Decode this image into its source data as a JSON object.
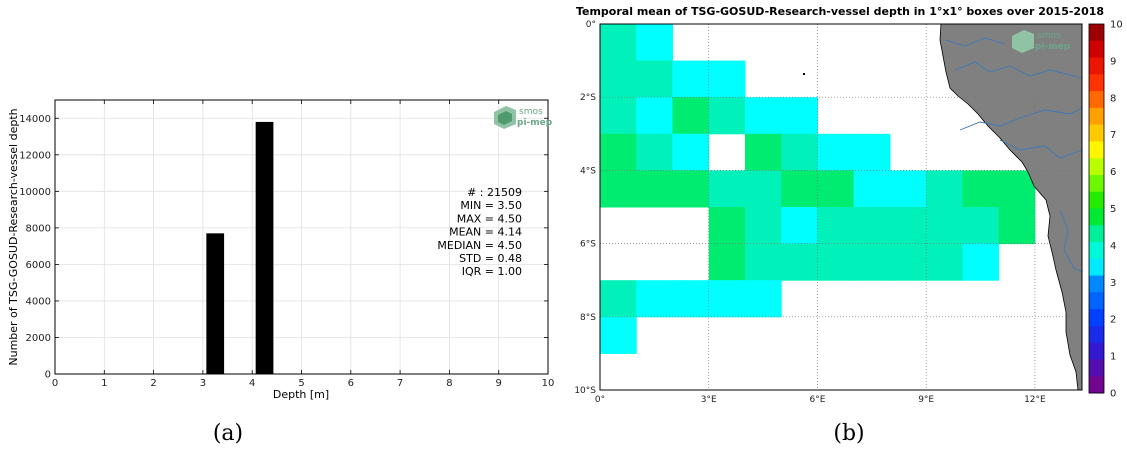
{
  "chart_data": [
    {
      "type": "bar",
      "xlabel": "Depth [m]",
      "ylabel": "Number of TSG-GOSUD-Research-vessel depth",
      "xlim": [
        0,
        10
      ],
      "ylim": [
        0,
        15000
      ],
      "x_ticks": [
        "0",
        "1",
        "2",
        "3",
        "4",
        "5",
        "6",
        "7",
        "8",
        "9",
        "10"
      ],
      "y_ticks": [
        "0",
        "2000",
        "4000",
        "6000",
        "8000",
        "10000",
        "12000",
        "14000"
      ],
      "bars": [
        {
          "x": 3.5,
          "value": 7700
        },
        {
          "x": 4.5,
          "value": 13800
        }
      ],
      "bar_color": "#000000",
      "grid": true,
      "stats": [
        "# : 21509",
        "MIN = 3.50",
        "MAX =  4.50",
        "MEAN = 4.14",
        "MEDIAN = 4.50",
        "STD = 0.48",
        "IQR = 1.00"
      ],
      "logo": [
        "smos",
        "pi-mep"
      ],
      "caption": "(a)"
    },
    {
      "type": "heatmap",
      "title": "Temporal mean of TSG-GOSUD-Research-vessel depth in 1°x1° boxes over 2015-2018",
      "x_ticks": [
        "0°",
        "3°E",
        "6°E",
        "9°E",
        "12°E"
      ],
      "y_ticks": [
        "0°",
        "2°S",
        "4°S",
        "6°S",
        "8°S",
        "10°S"
      ],
      "lon_range": [
        0,
        13.3
      ],
      "lat_range": [
        0,
        -10
      ],
      "colorbar_ticks": [
        "0",
        "1",
        "2",
        "3",
        "4",
        "5",
        "6",
        "7",
        "8",
        "9",
        "10"
      ],
      "clim": [
        0,
        10
      ],
      "cells": [
        {
          "lon": 0,
          "lat": 0,
          "value": 4.14
        },
        {
          "lon": 1,
          "lat": 0,
          "value": 3.5
        },
        {
          "lon": 0,
          "lat": 1,
          "value": 4.14
        },
        {
          "lon": 1,
          "lat": 1,
          "value": 4.14
        },
        {
          "lon": 2,
          "lat": 1,
          "value": 3.5
        },
        {
          "lon": 3,
          "lat": 1,
          "value": 3.5
        },
        {
          "lon": 0,
          "lat": 2,
          "value": 4.14
        },
        {
          "lon": 1,
          "lat": 2,
          "value": 3.5
        },
        {
          "lon": 2,
          "lat": 2,
          "value": 4.5
        },
        {
          "lon": 3,
          "lat": 2,
          "value": 4.14
        },
        {
          "lon": 4,
          "lat": 2,
          "value": 3.5
        },
        {
          "lon": 5,
          "lat": 2,
          "value": 3.5
        },
        {
          "lon": 0,
          "lat": 3,
          "value": 4.5
        },
        {
          "lon": 1,
          "lat": 3,
          "value": 4.14
        },
        {
          "lon": 2,
          "lat": 3,
          "value": 3.5
        },
        {
          "lon": 4,
          "lat": 3,
          "value": 4.5
        },
        {
          "lon": 5,
          "lat": 3,
          "value": 4.14
        },
        {
          "lon": 6,
          "lat": 3,
          "value": 3.5
        },
        {
          "lon": 7,
          "lat": 3,
          "value": 3.5
        },
        {
          "lon": 0,
          "lat": 4,
          "value": 4.5
        },
        {
          "lon": 1,
          "lat": 4,
          "value": 4.5
        },
        {
          "lon": 2,
          "lat": 4,
          "value": 4.5
        },
        {
          "lon": 3,
          "lat": 4,
          "value": 4.14
        },
        {
          "lon": 4,
          "lat": 4,
          "value": 4.14
        },
        {
          "lon": 5,
          "lat": 4,
          "value": 4.5
        },
        {
          "lon": 6,
          "lat": 4,
          "value": 4.5
        },
        {
          "lon": 7,
          "lat": 4,
          "value": 3.5
        },
        {
          "lon": 8,
          "lat": 4,
          "value": 3.5
        },
        {
          "lon": 9,
          "lat": 4,
          "value": 4.14
        },
        {
          "lon": 10,
          "lat": 4,
          "value": 4.5
        },
        {
          "lon": 11,
          "lat": 4,
          "value": 4.5
        },
        {
          "lon": 3,
          "lat": 5,
          "value": 4.5
        },
        {
          "lon": 4,
          "lat": 5,
          "value": 4.14
        },
        {
          "lon": 5,
          "lat": 5,
          "value": 3.5
        },
        {
          "lon": 6,
          "lat": 5,
          "value": 4.14
        },
        {
          "lon": 7,
          "lat": 5,
          "value": 4.14
        },
        {
          "lon": 8,
          "lat": 5,
          "value": 4.14
        },
        {
          "lon": 9,
          "lat": 5,
          "value": 4.14
        },
        {
          "lon": 10,
          "lat": 5,
          "value": 4.14
        },
        {
          "lon": 11,
          "lat": 5,
          "value": 4.5
        },
        {
          "lon": 3,
          "lat": 6,
          "value": 4.5
        },
        {
          "lon": 4,
          "lat": 6,
          "value": 4.14
        },
        {
          "lon": 5,
          "lat": 6,
          "value": 4.14
        },
        {
          "lon": 6,
          "lat": 6,
          "value": 4.14
        },
        {
          "lon": 7,
          "lat": 6,
          "value": 4.14
        },
        {
          "lon": 8,
          "lat": 6,
          "value": 4.14
        },
        {
          "lon": 9,
          "lat": 6,
          "value": 4.14
        },
        {
          "lon": 10,
          "lat": 6,
          "value": 3.5
        },
        {
          "lon": 0,
          "lat": 7,
          "value": 4.14
        },
        {
          "lon": 1,
          "lat": 7,
          "value": 3.5
        },
        {
          "lon": 2,
          "lat": 7,
          "value": 3.5
        },
        {
          "lon": 3,
          "lat": 7,
          "value": 3.5
        },
        {
          "lon": 4,
          "lat": 7,
          "value": 3.5
        },
        {
          "lon": 0,
          "lat": 8,
          "value": 3.5
        }
      ],
      "land_color": "#808080",
      "river_color": "#3a78b8",
      "logo": [
        "smos",
        "pi-mep"
      ],
      "caption": "(b)"
    }
  ]
}
